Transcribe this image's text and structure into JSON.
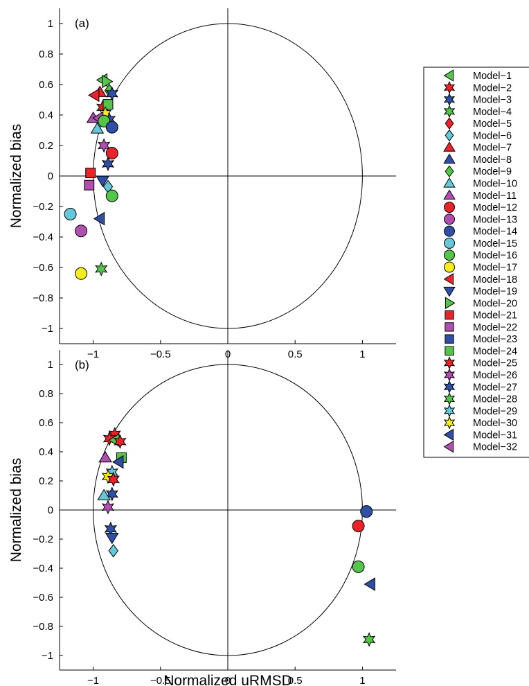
{
  "chart_data": [
    {
      "type": "scatter",
      "panel_label": "(a)",
      "xlabel": "",
      "ylabel": "Normalized bias",
      "xlim": [
        -1.25,
        1.25
      ],
      "ylim": [
        -1.1,
        1.1
      ],
      "xticks": [
        -1,
        -0.5,
        0,
        0.5,
        1
      ],
      "xtick_labels": [
        "−1",
        "−0.5",
        "0",
        "0.5",
        "1"
      ],
      "yticks": [
        1,
        0.8,
        0.6,
        0.4,
        0.2,
        0,
        -0.2,
        -0.4,
        -0.6,
        -0.8,
        -1
      ],
      "ytick_labels": [
        "1",
        "0.8",
        "0.6",
        "0.4",
        "0.2",
        "0",
        "−0.2",
        "−0.4",
        "−0.6",
        "−0.8",
        "−1"
      ],
      "unit_circle": true,
      "points": [
        {
          "model": 1,
          "x": -0.93,
          "y": 0.63
        },
        {
          "model": 20,
          "x": -0.9,
          "y": 0.62
        },
        {
          "model": 9,
          "x": -0.88,
          "y": 0.56
        },
        {
          "model": 7,
          "x": -0.95,
          "y": 0.55
        },
        {
          "model": 3,
          "x": -0.86,
          "y": 0.54
        },
        {
          "model": 18,
          "x": -0.99,
          "y": 0.53
        },
        {
          "model": 2,
          "x": -0.93,
          "y": 0.45
        },
        {
          "model": 24,
          "x": -0.89,
          "y": 0.47
        },
        {
          "model": 30,
          "x": -0.91,
          "y": 0.41
        },
        {
          "model": 11,
          "x": -1.0,
          "y": 0.38
        },
        {
          "model": 32,
          "x": -0.96,
          "y": 0.38
        },
        {
          "model": 27,
          "x": -0.88,
          "y": 0.37
        },
        {
          "model": 16,
          "x": -0.92,
          "y": 0.36
        },
        {
          "model": 10,
          "x": -0.97,
          "y": 0.31
        },
        {
          "model": 14,
          "x": -0.86,
          "y": 0.32
        },
        {
          "model": 26,
          "x": -0.92,
          "y": 0.2
        },
        {
          "model": 12,
          "x": -0.86,
          "y": 0.15
        },
        {
          "model": 3,
          "x": -0.89,
          "y": 0.08
        },
        {
          "model": 21,
          "x": -1.02,
          "y": 0.02
        },
        {
          "model": 19,
          "x": -0.93,
          "y": -0.03
        },
        {
          "model": 22,
          "x": -1.03,
          "y": -0.06
        },
        {
          "model": 6,
          "x": -0.89,
          "y": -0.07
        },
        {
          "model": 16,
          "x": -0.86,
          "y": -0.13
        },
        {
          "model": 15,
          "x": -1.17,
          "y": -0.25
        },
        {
          "model": 31,
          "x": -0.95,
          "y": -0.28
        },
        {
          "model": 13,
          "x": -1.09,
          "y": -0.36
        },
        {
          "model": 28,
          "x": -0.94,
          "y": -0.61
        },
        {
          "model": 17,
          "x": -1.09,
          "y": -0.64
        }
      ]
    },
    {
      "type": "scatter",
      "panel_label": "(b)",
      "xlabel": "Normalized uRMSD",
      "ylabel": "Normalized bias",
      "xlim": [
        -1.25,
        1.25
      ],
      "ylim": [
        -1.1,
        1.1
      ],
      "xticks": [
        -1,
        -0.5,
        0,
        0.5,
        1
      ],
      "xtick_labels": [
        "−1",
        "−0.5",
        "0",
        "0.5",
        "1"
      ],
      "yticks": [
        1,
        0.8,
        0.6,
        0.4,
        0.2,
        0,
        -0.2,
        -0.4,
        -0.6,
        -0.8,
        -1
      ],
      "ytick_labels": [
        "1",
        "0.8",
        "0.6",
        "0.4",
        "0.2",
        "0",
        "−0.2",
        "−0.4",
        "−0.6",
        "−0.8",
        "−1"
      ],
      "unit_circle": true,
      "points": [
        {
          "model": 2,
          "x": -0.84,
          "y": 0.52
        },
        {
          "model": 25,
          "x": -0.88,
          "y": 0.49
        },
        {
          "model": 1,
          "x": -0.84,
          "y": 0.48
        },
        {
          "model": 2,
          "x": -0.8,
          "y": 0.47
        },
        {
          "model": 24,
          "x": -0.79,
          "y": 0.36
        },
        {
          "model": 11,
          "x": -0.91,
          "y": 0.36
        },
        {
          "model": 31,
          "x": -0.81,
          "y": 0.33
        },
        {
          "model": 29,
          "x": -0.86,
          "y": 0.26
        },
        {
          "model": 30,
          "x": -0.89,
          "y": 0.23
        },
        {
          "model": 25,
          "x": -0.85,
          "y": 0.21
        },
        {
          "model": 27,
          "x": -0.86,
          "y": 0.11
        },
        {
          "model": 10,
          "x": -0.92,
          "y": 0.1
        },
        {
          "model": 26,
          "x": -0.89,
          "y": 0.02
        },
        {
          "model": 27,
          "x": -0.87,
          "y": -0.13
        },
        {
          "model": 19,
          "x": -0.86,
          "y": -0.19
        },
        {
          "model": 6,
          "x": -0.85,
          "y": -0.28
        },
        {
          "model": 14,
          "x": 1.03,
          "y": -0.01
        },
        {
          "model": 12,
          "x": 0.97,
          "y": -0.11
        },
        {
          "model": 16,
          "x": 0.97,
          "y": -0.39
        },
        {
          "model": 31,
          "x": 1.06,
          "y": -0.51
        },
        {
          "model": 28,
          "x": 1.05,
          "y": -0.89
        }
      ]
    }
  ],
  "legend": {
    "placement": "right",
    "entries": [
      {
        "label": "Model−1",
        "marker": "triangle-left",
        "color": "#55c44a"
      },
      {
        "label": "Model−2",
        "marker": "hexagram",
        "color": "#e8232a"
      },
      {
        "label": "Model−3",
        "marker": "hexagram",
        "color": "#2e4fa3"
      },
      {
        "label": "Model−4",
        "marker": "hexagram",
        "color": "#55c44a"
      },
      {
        "label": "Model−5",
        "marker": "diamond",
        "color": "#e8232a"
      },
      {
        "label": "Model−6",
        "marker": "diamond",
        "color": "#64c8d8"
      },
      {
        "label": "Model−7",
        "marker": "triangle-up",
        "color": "#e8232a"
      },
      {
        "label": "Model−8",
        "marker": "triangle-up",
        "color": "#2e4fa3"
      },
      {
        "label": "Model−9",
        "marker": "diamond",
        "color": "#55c44a"
      },
      {
        "label": "Model−10",
        "marker": "triangle-up",
        "color": "#64c8d8"
      },
      {
        "label": "Model−11",
        "marker": "triangle-up",
        "color": "#b04fb0"
      },
      {
        "label": "Model−12",
        "marker": "circle",
        "color": "#e8232a"
      },
      {
        "label": "Model−13",
        "marker": "circle",
        "color": "#b04fb0"
      },
      {
        "label": "Model−14",
        "marker": "circle",
        "color": "#2e4fa3"
      },
      {
        "label": "Model−15",
        "marker": "circle",
        "color": "#64c8d8"
      },
      {
        "label": "Model−16",
        "marker": "circle",
        "color": "#55c44a"
      },
      {
        "label": "Model−17",
        "marker": "circle",
        "color": "#f7ed1e"
      },
      {
        "label": "Model−18",
        "marker": "triangle-left",
        "color": "#e8232a"
      },
      {
        "label": "Model−19",
        "marker": "triangle-down",
        "color": "#2e4fa3"
      },
      {
        "label": "Model−20",
        "marker": "triangle-right",
        "color": "#55c44a"
      },
      {
        "label": "Model−21",
        "marker": "square",
        "color": "#e8232a"
      },
      {
        "label": "Model−22",
        "marker": "square",
        "color": "#b04fb0"
      },
      {
        "label": "Model−23",
        "marker": "square",
        "color": "#2e4fa3"
      },
      {
        "label": "Model−24",
        "marker": "square",
        "color": "#55c44a"
      },
      {
        "label": "Model−25",
        "marker": "hexagram",
        "color": "#e8232a"
      },
      {
        "label": "Model−26",
        "marker": "hexagram",
        "color": "#b04fb0"
      },
      {
        "label": "Model−27",
        "marker": "hexagram",
        "color": "#2e4fa3"
      },
      {
        "label": "Model−28",
        "marker": "hexagram",
        "color": "#55c44a"
      },
      {
        "label": "Model−29",
        "marker": "hexagram",
        "color": "#64c8d8"
      },
      {
        "label": "Model−30",
        "marker": "hexagram",
        "color": "#f7ed1e"
      },
      {
        "label": "Model−31",
        "marker": "triangle-left",
        "color": "#2e4fa3"
      },
      {
        "label": "Model−32",
        "marker": "triangle-left",
        "color": "#b04fb0"
      }
    ]
  }
}
